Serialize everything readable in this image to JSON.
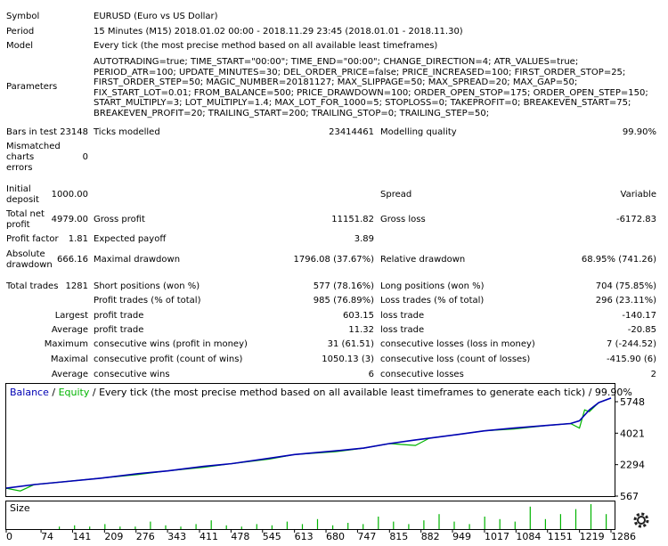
{
  "rows": {
    "symbol": {
      "label": "Symbol",
      "value": "EURUSD (Euro vs US Dollar)"
    },
    "period": {
      "label": "Period",
      "value": "15 Minutes (M15) 2018.01.02 00:00 - 2018.11.29 23:45 (2018.01.01 - 2018.11.30)"
    },
    "model": {
      "label": "Model",
      "value": "Every tick (the most precise method based on all available least timeframes)"
    },
    "parameters": {
      "label": "Parameters",
      "value": "AUTOTRADING=true; TIME_START=\"00:00\"; TIME_END=\"00:00\"; CHANGE_DIRECTION=4; ATR_VALUES=true; PERIOD_ATR=100; UPDATE_MINUTES=30; DEL_ORDER_PRICE=false; PRICE_INCREASED=100; FIRST_ORDER_STOP=25; FIRST_ORDER_STEP=50; MAGIC_NUMBER=20181127; MAX_SLIPPAGE=50; MAX_SPREAD=20; MAX_GAP=50; FIX_START_LOT=0.01; FROM_BALANCE=500; PRICE_DRAWDOWN=100; ORDER_OPEN_STOP=175; ORDER_OPEN_STEP=150; START_MULTIPLY=3; LOT_MULTIPLY=1.4; MAX_LOT_FOR_1000=5; STOPLOSS=0; TAKEPROFIT=0; BREAKEVEN_START=75; BREAKEVEN_PROFIT=20; TRAILING_START=200; TRAILING_STOP=0; TRAILING_STEP=50;"
    },
    "bars": {
      "label": "Bars in test",
      "value": "23148",
      "label2": "Ticks modelled",
      "value2": "23414461",
      "label3": "Modelling quality",
      "value3": "99.90%"
    },
    "mismatched": {
      "label1": "Mismatched",
      "label2": "charts",
      "label3": "errors",
      "value": "0"
    },
    "initial": {
      "label1": "Initial",
      "label2": "deposit",
      "value": "1000.00",
      "label3": "Spread",
      "value3": "Variable"
    },
    "netprofit": {
      "label1": "Total net",
      "label2": "profit",
      "value": "4979.00",
      "label3": "Gross profit",
      "value3": "11151.82",
      "label4": "Gross loss",
      "value4": "-6172.83"
    },
    "pf": {
      "label": "Profit factor",
      "value": "1.81",
      "label2": "Expected payoff",
      "value2": "3.89"
    },
    "dd": {
      "label1": "Absolute",
      "label2": "drawdown",
      "value": "666.16",
      "label3": "Maximal drawdown",
      "value3": "1796.08 (37.67%)",
      "label4": "Relative drawdown",
      "value4": "68.95% (741.26)"
    },
    "trades": {
      "label": "Total trades",
      "value": "1281",
      "label2": "Short positions (won %)",
      "value2": "577 (78.16%)",
      "label3": "Long positions (won %)",
      "value3": "704 (75.85%)"
    },
    "pt": {
      "label2": "Profit trades (% of total)",
      "value2": "985 (76.89%)",
      "label3": "Loss trades (% of total)",
      "value3": "296 (23.11%)"
    },
    "largest": {
      "label": "Largest",
      "label2": "profit trade",
      "value2": "603.15",
      "label3": "loss trade",
      "value3": "-140.17"
    },
    "average": {
      "label": "Average",
      "label2": "profit trade",
      "value2": "11.32",
      "label3": "loss trade",
      "value3": "-20.85"
    },
    "maximum": {
      "label": "Maximum",
      "label2": "consecutive wins (profit in money)",
      "value2": "31 (61.51)",
      "label3": "consecutive losses (loss in money)",
      "value3": "7 (-244.52)"
    },
    "maximal": {
      "label": "Maximal",
      "label2": "consecutive profit (count of wins)",
      "value2": "1050.13 (3)",
      "label3": "consecutive loss (count of losses)",
      "value3": "-415.90 (6)"
    },
    "average2": {
      "label": "Average",
      "label2": "consecutive wins",
      "value2": "6",
      "label3": "consecutive losses",
      "value3": "2"
    }
  },
  "chart": {
    "legend_balance": "Balance",
    "legend_sep1": " / ",
    "legend_equity": "Equity",
    "legend_rest": " / Every tick (the most precise method based on all available least timeframes to generate each tick) / 99.90%",
    "size_label": "Size",
    "y_ticks": [
      "5748",
      "4021",
      "2294",
      "567"
    ],
    "x_ticks": [
      "0",
      "74",
      "141",
      "209",
      "276",
      "343",
      "411",
      "478",
      "545",
      "613",
      "680",
      "747",
      "815",
      "882",
      "949",
      "1017",
      "1084",
      "1151",
      "1219",
      "1286"
    ],
    "colors": {
      "balance": "#0000b4",
      "equity": "#00b400",
      "legend_balance": "#0000b4",
      "legend_equity": "#00b400"
    },
    "icon": "gear-icon"
  },
  "chart_data": {
    "type": "line",
    "xlabel": "",
    "ylabel": "",
    "xlim": [
      0,
      1286
    ],
    "ylim": [
      567,
      5748
    ],
    "series": [
      {
        "name": "Balance",
        "x": [
          0,
          60,
          120,
          200,
          280,
          343,
          420,
          480,
          560,
          613,
          700,
          760,
          815,
          870,
          900,
          960,
          1017,
          1080,
          1151,
          1200,
          1219,
          1240,
          1260,
          1286
        ],
        "values": [
          1000,
          1200,
          1350,
          1550,
          1800,
          1950,
          2200,
          2350,
          2650,
          2850,
          3050,
          3200,
          3450,
          3650,
          3750,
          3950,
          4150,
          4300,
          4450,
          4550,
          4700,
          5300,
          5700,
          5950
        ]
      },
      {
        "name": "Equity",
        "x": [
          0,
          30,
          60,
          120,
          200,
          280,
          343,
          420,
          480,
          560,
          613,
          700,
          760,
          815,
          870,
          900,
          960,
          1017,
          1080,
          1151,
          1200,
          1219,
          1230,
          1240,
          1260,
          1286
        ],
        "values": [
          1000,
          850,
          1200,
          1350,
          1550,
          1750,
          1950,
          2150,
          2350,
          2600,
          2850,
          3000,
          3200,
          3450,
          3350,
          3750,
          3950,
          4150,
          4250,
          4450,
          4550,
          4300,
          5300,
          5200,
          5700,
          5950
        ]
      }
    ],
    "size_values": [
      0.1,
      0.15,
      0.1,
      0.2,
      0.1,
      0.1,
      0.3,
      0.15,
      0.1,
      0.2,
      0.35,
      0.15,
      0.1,
      0.2,
      0.15,
      0.3,
      0.2,
      0.4,
      0.15,
      0.25,
      0.2,
      0.5,
      0.3,
      0.2,
      0.35,
      0.6,
      0.3,
      0.2,
      0.5,
      0.4,
      0.3,
      0.9,
      0.4,
      0.6,
      0.8,
      1.0,
      0.6
    ]
  }
}
